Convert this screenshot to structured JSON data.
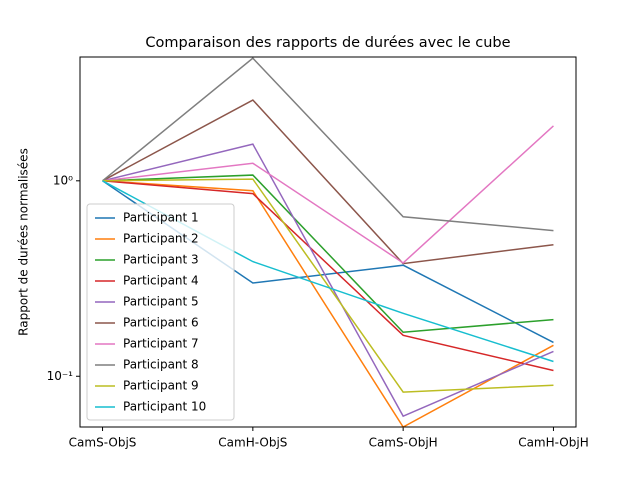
{
  "chart_data": {
    "type": "line",
    "title": "Comparaison des rapports de durées avec le cube",
    "ylabel": "Rapport de durées normalisées",
    "categories": [
      "CamS-ObjS",
      "CamH-ObjS",
      "CamS-ObjH",
      "CamH-ObjH"
    ],
    "yscale": "log",
    "ylim": [
      0.055,
      4.3
    ],
    "yticks": [
      {
        "value": 0.1,
        "label": "10⁻¹"
      },
      {
        "value": 1,
        "label": "10⁰"
      }
    ],
    "legend": "lower left",
    "series": [
      {
        "name": "Participant 1",
        "color": "#1f77b4",
        "values": [
          1,
          0.3,
          0.37,
          0.149
        ]
      },
      {
        "name": "Participant 2",
        "color": "#ff7f0e",
        "values": [
          1,
          0.89,
          0.055,
          0.144
        ]
      },
      {
        "name": "Participant 3",
        "color": "#2ca02c",
        "values": [
          1,
          1.07,
          0.168,
          0.195
        ]
      },
      {
        "name": "Participant 4",
        "color": "#d62728",
        "values": [
          1,
          0.86,
          0.162,
          0.107
        ]
      },
      {
        "name": "Participant 5",
        "color": "#9467bd",
        "values": [
          1,
          1.54,
          0.0625,
          0.134
        ]
      },
      {
        "name": "Participant 6",
        "color": "#8c564b",
        "values": [
          1,
          2.59,
          0.377,
          0.471
        ]
      },
      {
        "name": "Participant 7",
        "color": "#e377c2",
        "values": [
          1,
          1.23,
          0.38,
          1.91
        ]
      },
      {
        "name": "Participant 8",
        "color": "#7f7f7f",
        "values": [
          1,
          4.24,
          0.655,
          0.556
        ]
      },
      {
        "name": "Participant 9",
        "color": "#bcbd22",
        "values": [
          1,
          1.02,
          0.083,
          0.09
        ]
      },
      {
        "name": "Participant 10",
        "color": "#17becf",
        "values": [
          1,
          0.386,
          0.21,
          0.119
        ]
      }
    ]
  }
}
